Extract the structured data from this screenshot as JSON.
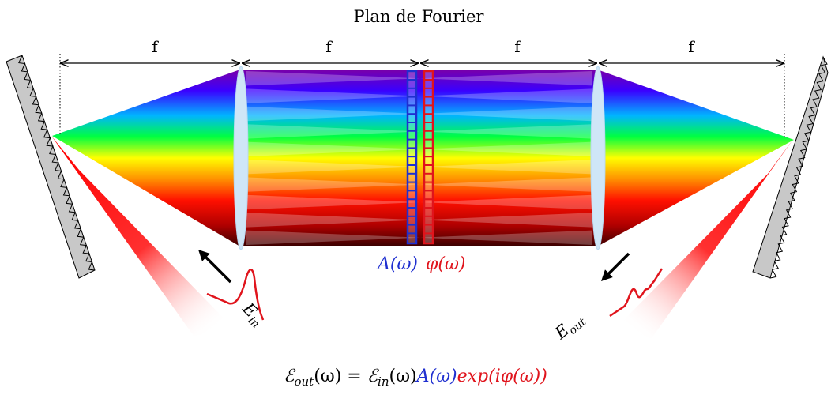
{
  "title": "Plan de Fourier",
  "distance_labels": [
    "f",
    "f",
    "f",
    "f"
  ],
  "mask_labels": {
    "amplitude": "A(ω)",
    "phase": "φ(ω)"
  },
  "pulse_labels": {
    "input": "E",
    "input_sub": "in",
    "output": "E",
    "output_sub": "out"
  },
  "equation": {
    "lhs_symbol": "ℰ",
    "lhs_sub": "out",
    "lhs_arg": "(ω) = ",
    "in_symbol": "ℰ",
    "in_sub": "in",
    "in_arg": "(ω)",
    "amp": "A(ω)",
    "phase": "exp(iφ(ω))"
  },
  "colors": {
    "amplitude": "#1f2fd0",
    "phase": "#e0141c",
    "lens": "#cfe6f7",
    "grating": "#c8c8c8",
    "beam": "#e50000"
  }
}
